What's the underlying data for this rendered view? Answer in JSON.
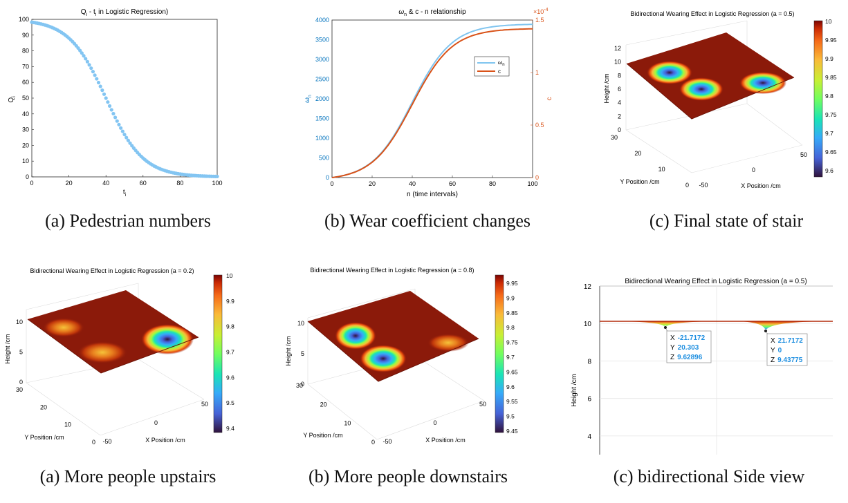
{
  "captions": {
    "a1": "(a) Pedestrian numbers",
    "b1": "(b) Wear coefficient changes",
    "c1": "(c) Final state of stair",
    "a2": "(a) More people upstairs",
    "b2": "(b) More people downstairs",
    "c2": "(c) bidirectional Side view"
  },
  "colors": {
    "axis": "#262626",
    "grid": "#e6e6e6",
    "scatter": "#83c5f2",
    "omega_line": "#7fc4ef",
    "c_line": "#d95319",
    "right_axis": "#d95319",
    "left_axis_b": "#0072bd",
    "surface_top": "#8b1a0a",
    "datatip_blue": "#1f8fe0"
  },
  "chart_data": [
    {
      "id": "a1",
      "type": "scatter",
      "title_main": "Q",
      "title_sub1": "i",
      "title_mid": " - t",
      "title_sub2": "i",
      "title_rest": " in Logistic Regression)",
      "xlabel": "t",
      "xlabel_sub": "i",
      "ylabel": "Q",
      "ylabel_sub": "i",
      "xlim": [
        0,
        100
      ],
      "ylim": [
        0,
        100
      ],
      "xticks": [
        "0",
        "20",
        "40",
        "60",
        "80",
        "100"
      ],
      "yticks": [
        "0",
        "10",
        "20",
        "30",
        "40",
        "50",
        "60",
        "70",
        "80",
        "90",
        "100"
      ],
      "model": {
        "L": 100,
        "k": 0.1,
        "x0": 40
      },
      "x_range": [
        0,
        100
      ],
      "point_count": 101
    },
    {
      "id": "b1",
      "type": "line",
      "title_pre": "ω",
      "title_sub": "n",
      "title_rest": " & c - n relationship",
      "xlabel": "n (time intervals)",
      "ylabel_left": "ω",
      "ylabel_left_sub": "n",
      "ylabel_right": "c",
      "xlim": [
        0,
        100
      ],
      "ylim_left": [
        0,
        4000
      ],
      "ylim_right": [
        0,
        1.5
      ],
      "right_exponent": "×10",
      "right_exponent_power": "-4",
      "xticks": [
        "0",
        "20",
        "40",
        "60",
        "80",
        "100"
      ],
      "yticks_left": [
        "0",
        "500",
        "1000",
        "1500",
        "2000",
        "2500",
        "3000",
        "3500",
        "4000"
      ],
      "yticks_right": [
        "0",
        "0.5",
        "1",
        "1.5"
      ],
      "legend": {
        "position": "right-middle",
        "omega_label": "ω",
        "omega_sub": "n",
        "c_label": "c"
      },
      "series": [
        {
          "key": "omega",
          "asymptote": 3900,
          "k": 0.1,
          "x0": 40
        },
        {
          "key": "c",
          "asymptote": 1.42,
          "k": 0.1,
          "x0": 40
        }
      ]
    },
    {
      "id": "c1",
      "type": "heatmap",
      "title": "Bidirectional Wearing Effect in Logistic Regression (a = 0.5)",
      "xlabel": "X Position /cm",
      "ylabel": "Y Position /cm",
      "zlabel": "Height /cm",
      "xticks": [
        "-50",
        "0",
        "50"
      ],
      "yticks": [
        "0",
        "10",
        "20",
        "30"
      ],
      "zticks": [
        "0",
        "2",
        "4",
        "6",
        "8",
        "10",
        "12"
      ],
      "colorbar_ticks": [
        "10",
        "9.95",
        "9.9",
        "9.85",
        "9.8",
        "9.75",
        "9.7",
        "9.65",
        "9.6"
      ],
      "colorbar_range": [
        9.58,
        10
      ],
      "wear_spots": [
        {
          "x": -20,
          "y": 22,
          "depth": 0.32
        },
        {
          "x": -8,
          "y": 8,
          "depth": 0.36
        },
        {
          "x": 38,
          "y": 15,
          "depth": 0.38
        }
      ]
    },
    {
      "id": "a2",
      "type": "heatmap",
      "title": "Bidirectional Wearing Effect in Logistic Regression (a = 0.2)",
      "xlabel": "X Position /cm",
      "ylabel": "Y Position /cm",
      "zlabel": "Height /cm",
      "xticks": [
        "-50",
        "0",
        "50"
      ],
      "yticks": [
        "0",
        "10",
        "20",
        "30"
      ],
      "zticks": [
        "0",
        "5",
        "10"
      ],
      "colorbar_ticks": [
        "10",
        "9.9",
        "9.8",
        "9.7",
        "9.6",
        "9.5",
        "9.4"
      ],
      "colorbar_range": [
        9.37,
        10
      ],
      "wear_spots": [
        {
          "x": -30,
          "y": 20,
          "depth": 0.18
        },
        {
          "x": -12,
          "y": 10,
          "depth": 0.2
        },
        {
          "x": 32,
          "y": 15,
          "depth": 0.6
        }
      ]
    },
    {
      "id": "b2",
      "type": "heatmap",
      "title": "Bidirectional Wearing Effect in Logistic Regression (a = 0.8)",
      "xlabel": "X Position /cm",
      "ylabel": "Y Position /cm",
      "zlabel": "Height /cm",
      "xticks": [
        "-50",
        "0",
        "50"
      ],
      "yticks": [
        "0",
        "10",
        "20",
        "30"
      ],
      "zticks": [
        "0",
        "5",
        "10"
      ],
      "colorbar_ticks": [
        "9.95",
        "9.9",
        "9.85",
        "9.8",
        "9.75",
        "9.7",
        "9.65",
        "9.6",
        "9.55",
        "9.5",
        "9.45"
      ],
      "colorbar_range": [
        9.43,
        10
      ],
      "wear_spots": [
        {
          "x": -25,
          "y": 22,
          "depth": 0.52
        },
        {
          "x": -12,
          "y": 8,
          "depth": 0.56
        },
        {
          "x": 32,
          "y": 15,
          "depth": 0.1
        }
      ]
    },
    {
      "id": "c2",
      "type": "line",
      "title": "Bidirectional Wearing Effect in Logistic Regression (a = 0.5)",
      "zlabel": "Height /cm",
      "ylim": [
        3,
        12
      ],
      "yticks": [
        "4",
        "6",
        "8",
        "10",
        "12"
      ],
      "datatips": [
        {
          "x_label": "X",
          "x_value": "-21.7172",
          "y_label": "Y",
          "y_value": "20.303",
          "z_label": "Z",
          "z_value": "9.62896"
        },
        {
          "x_label": "X",
          "x_value": "21.7172",
          "y_label": "Y",
          "y_value": "0",
          "z_label": "Z",
          "z_value": "9.43775"
        }
      ]
    }
  ]
}
